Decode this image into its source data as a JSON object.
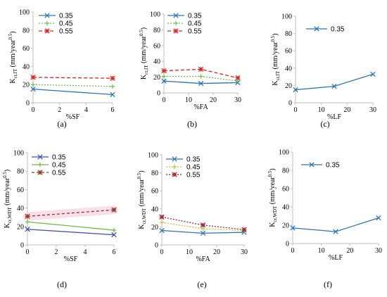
{
  "chart_data": [
    {
      "type": "line",
      "caption": "(a)",
      "ylabel_main": "K",
      "ylabel_sub": "cr,IT",
      "ylabel_unit": "(mm/year",
      "ylabel_exp": "0.5",
      "ylabel_close": ")",
      "xlabel": "%SF",
      "xlim": [
        0,
        6
      ],
      "ylim": [
        0,
        100
      ],
      "xticks": [
        "0",
        "2",
        "4",
        "6"
      ],
      "yticks": [
        "0",
        "20",
        "40",
        "60",
        "80",
        "100"
      ],
      "series": [
        {
          "name": "0.35",
          "x": [
            0,
            6
          ],
          "y": [
            15,
            9
          ]
        },
        {
          "name": "0.45",
          "x": [
            0,
            6
          ],
          "y": [
            20,
            18
          ]
        },
        {
          "name": "0.55",
          "x": [
            0,
            6
          ],
          "y": [
            28,
            27
          ]
        }
      ]
    },
    {
      "type": "line",
      "caption": "(b)",
      "ylabel_main": "K",
      "ylabel_sub": "cr,IT",
      "ylabel_unit": "(mm/year",
      "ylabel_exp": "0.5",
      "ylabel_close": ")",
      "xlabel": "%FA",
      "xlim": [
        0,
        30
      ],
      "ylim": [
        0,
        100
      ],
      "xticks": [
        "0",
        "10",
        "20",
        "30"
      ],
      "yticks": [
        "0",
        "20",
        "40",
        "60",
        "80",
        "100"
      ],
      "series": [
        {
          "name": "0.35",
          "x": [
            0,
            15,
            30
          ],
          "y": [
            15,
            12,
            13
          ]
        },
        {
          "name": "0.45",
          "x": [
            0,
            15,
            30
          ],
          "y": [
            21,
            21,
            15
          ]
        },
        {
          "name": "0.55",
          "x": [
            0,
            15,
            30
          ],
          "y": [
            28,
            30,
            19
          ]
        }
      ]
    },
    {
      "type": "line",
      "caption": "(c)",
      "ylabel_main": "K",
      "ylabel_sub": "cr,IT",
      "ylabel_unit": "(mm/year",
      "ylabel_exp": "0.5",
      "ylabel_close": ")",
      "xlabel": "%LF",
      "xlim": [
        0,
        30
      ],
      "ylim": [
        0,
        100
      ],
      "xticks": [
        "0",
        "10",
        "20",
        "30"
      ],
      "yticks": [
        "0",
        "20",
        "40",
        "60",
        "80",
        "100"
      ],
      "series": [
        {
          "name": "0.35",
          "x": [
            0,
            15,
            30
          ],
          "y": [
            15,
            19,
            33
          ]
        }
      ]
    },
    {
      "type": "line",
      "caption": "(d)",
      "ylabel_main": "K",
      "ylabel_sub": "cr,WDT",
      "ylabel_unit": "(mm/year",
      "ylabel_exp": "0.5",
      "ylabel_close": ")",
      "xlabel": "%SF",
      "xlim": [
        0,
        6
      ],
      "ylim": [
        0,
        100
      ],
      "xticks": [
        "0",
        "2",
        "4",
        "6"
      ],
      "yticks": [
        "0",
        "20",
        "40",
        "60",
        "80",
        "100"
      ],
      "series": [
        {
          "name": "0.35",
          "x": [
            0,
            6
          ],
          "y": [
            17,
            11
          ]
        },
        {
          "name": "0.45",
          "x": [
            0,
            6
          ],
          "y": [
            25,
            16
          ]
        },
        {
          "name": "0.55",
          "x": [
            0,
            6
          ],
          "y": [
            31,
            38
          ]
        }
      ]
    },
    {
      "type": "line",
      "caption": "(e)",
      "ylabel_main": "K",
      "ylabel_sub": "cr,WDT",
      "ylabel_unit": "(mm/year",
      "ylabel_exp": "0.5",
      "ylabel_close": ")",
      "xlabel": "%FA",
      "xlim": [
        0,
        30
      ],
      "ylim": [
        0,
        100
      ],
      "xticks": [
        "0",
        "10",
        "20",
        "30"
      ],
      "yticks": [
        "0",
        "20",
        "40",
        "60",
        "80",
        "100"
      ],
      "series": [
        {
          "name": "0.35",
          "x": [
            0,
            15,
            30
          ],
          "y": [
            16,
            13,
            14
          ]
        },
        {
          "name": "0.45",
          "x": [
            0,
            15,
            30
          ],
          "y": [
            25,
            18,
            16
          ]
        },
        {
          "name": "0.55",
          "x": [
            0,
            15,
            30
          ],
          "y": [
            31,
            22,
            17
          ]
        }
      ]
    },
    {
      "type": "line",
      "caption": "(f)",
      "ylabel_main": "K",
      "ylabel_sub": "cr,WDT",
      "ylabel_unit": "(mm/year",
      "ylabel_exp": "0.5",
      "ylabel_close": ")",
      "xlabel": "%LF",
      "xlim": [
        0,
        30
      ],
      "ylim": [
        0,
        100
      ],
      "xticks": [
        "0",
        "10",
        "20",
        "30"
      ],
      "yticks": [
        "0",
        "20",
        "40",
        "60",
        "80",
        "100"
      ],
      "series": [
        {
          "name": "0.35",
          "x": [
            0,
            15,
            30
          ],
          "y": [
            17,
            13,
            28
          ]
        }
      ]
    }
  ]
}
